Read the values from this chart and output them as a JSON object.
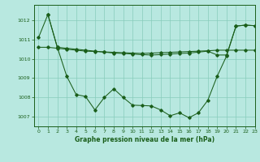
{
  "title": "Graphe pression niveau de la mer (hPa)",
  "bg_color": "#b8e8e0",
  "grid_color": "#88ccbb",
  "line_color": "#1a5e1a",
  "ylim": [
    1006.5,
    1012.8
  ],
  "xlim": [
    -0.5,
    23
  ],
  "yticks": [
    1007,
    1008,
    1009,
    1010,
    1011,
    1012
  ],
  "xticks": [
    0,
    1,
    2,
    3,
    4,
    5,
    6,
    7,
    8,
    9,
    10,
    11,
    12,
    13,
    14,
    15,
    16,
    17,
    18,
    19,
    20,
    21,
    22,
    23
  ],
  "series1_x": [
    0,
    1,
    2,
    3,
    4,
    5,
    6,
    7,
    8,
    9,
    10,
    11,
    12,
    13,
    14,
    15,
    16,
    17,
    18,
    19,
    20,
    21,
    22,
    23
  ],
  "series1_y": [
    1011.1,
    1012.3,
    1010.6,
    1010.55,
    1010.5,
    1010.45,
    1010.4,
    1010.35,
    1010.3,
    1010.28,
    1010.25,
    1010.22,
    1010.2,
    1010.22,
    1010.25,
    1010.28,
    1010.3,
    1010.35,
    1010.4,
    1010.2,
    1010.2,
    1011.7,
    1011.75,
    1011.72
  ],
  "series2_x": [
    0,
    1,
    2,
    3,
    4,
    5,
    6,
    7,
    8,
    9,
    10,
    11,
    12,
    13,
    14,
    15,
    16,
    17,
    18,
    19,
    20,
    21,
    22,
    23
  ],
  "series2_y": [
    1010.6,
    1010.6,
    1010.55,
    1010.5,
    1010.45,
    1010.4,
    1010.38,
    1010.36,
    1010.34,
    1010.32,
    1010.3,
    1010.28,
    1010.3,
    1010.32,
    1010.34,
    1010.36,
    1010.38,
    1010.4,
    1010.42,
    1010.45,
    1010.45,
    1010.45,
    1010.45,
    1010.45
  ],
  "series3_x": [
    1,
    2,
    3,
    4,
    5,
    6,
    7,
    8,
    9,
    10,
    11,
    12,
    13,
    14,
    15,
    16,
    17,
    18,
    19,
    20,
    21,
    22,
    23
  ],
  "series3_y": [
    1012.3,
    1010.6,
    1009.1,
    1008.15,
    1008.05,
    1007.35,
    1008.0,
    1008.45,
    1008.0,
    1007.6,
    1007.58,
    1007.56,
    1007.35,
    1007.05,
    1007.2,
    1006.95,
    1007.2,
    1007.85,
    1009.1,
    1010.15,
    1011.7,
    1011.75,
    1011.72
  ]
}
